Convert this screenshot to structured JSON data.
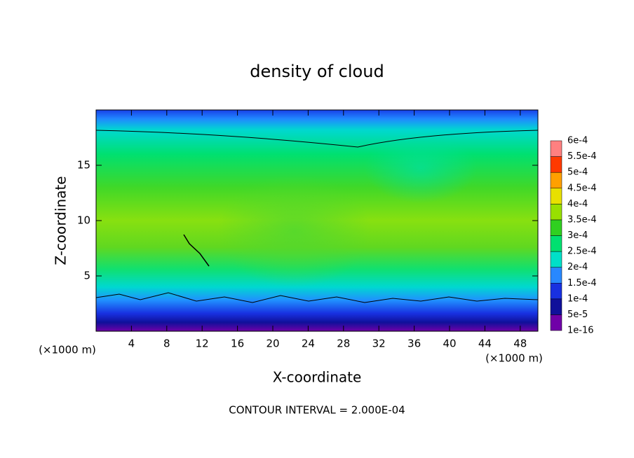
{
  "chart_data": {
    "type": "contour",
    "title": "density of cloud",
    "xlabel": "X-coordinate",
    "ylabel": "Z-coordinate",
    "xunit": "(×1000 m)",
    "yunit": "(×1000 m)",
    "xlim": [
      0,
      50
    ],
    "xticks": [
      4,
      8,
      12,
      16,
      20,
      24,
      28,
      32,
      36,
      40,
      44,
      48
    ],
    "ylim": [
      0,
      20
    ],
    "yticks": [
      5,
      10,
      15
    ],
    "annotation": "CONTOUR INTERVAL = 2.000E-04",
    "colorbar": {
      "ticks": [
        {
          "value": 1e-16,
          "label": "1e-16"
        },
        {
          "value": 5e-05,
          "label": "5e-5"
        },
        {
          "value": 0.0001,
          "label": "1e-4"
        },
        {
          "value": 0.00015,
          "label": "1.5e-4"
        },
        {
          "value": 0.0002,
          "label": "2e-4"
        },
        {
          "value": 0.00025,
          "label": "2.5e-4"
        },
        {
          "value": 0.0003,
          "label": "3e-4"
        },
        {
          "value": 0.00035,
          "label": "3.5e-4"
        },
        {
          "value": 0.0004,
          "label": "4e-4"
        },
        {
          "value": 0.00045,
          "label": "4.5e-4"
        },
        {
          "value": 0.0005,
          "label": "5e-4"
        },
        {
          "value": 0.00055,
          "label": "5.5e-4"
        },
        {
          "value": 0.0006,
          "label": "6e-4"
        }
      ],
      "colors": [
        "#7000a8",
        "#10109a",
        "#1830e0",
        "#2888ff",
        "#00e0c8",
        "#00e070",
        "#30d020",
        "#98e000",
        "#e8e000",
        "#ffa000",
        "#ff3a00",
        "#ff8080"
      ]
    }
  }
}
